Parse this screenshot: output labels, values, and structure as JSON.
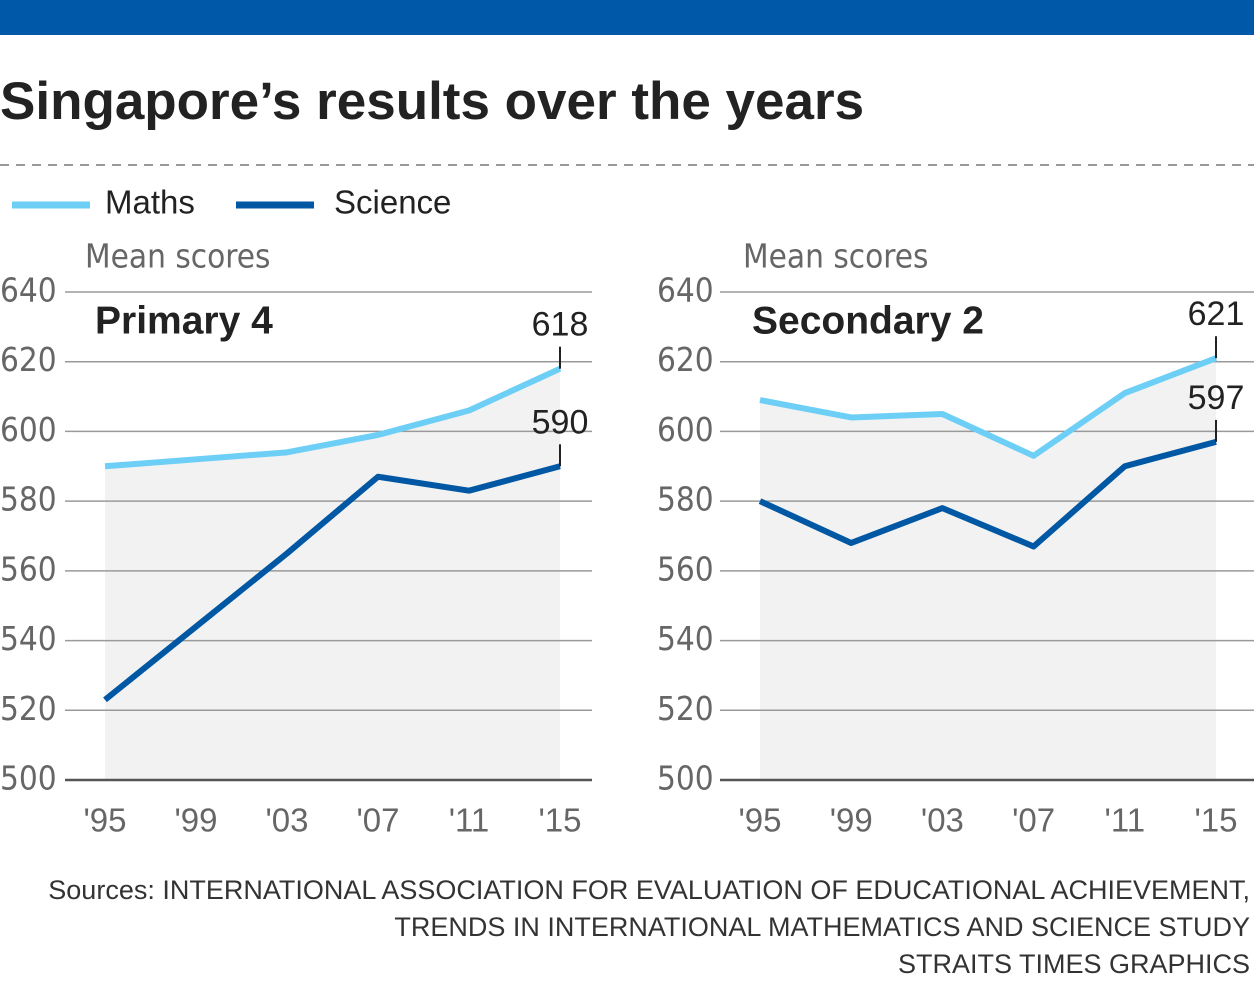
{
  "title": "Singapore’s results over the years",
  "sources": [
    "Sources: INTERNATIONAL ASSOCIATION FOR EVALUATION OF EDUCATIONAL ACHIEVEMENT,",
    "TRENDS IN INTERNATIONAL MATHEMATICS AND SCIENCE STUDY",
    "STRAITS TIMES GRAPHICS"
  ],
  "chart_data": [
    {
      "type": "line",
      "subtitle": "Primary 4",
      "ylabel": "Mean scores",
      "categories": [
        "'95",
        "'99",
        "'03",
        "'07",
        "'11",
        "'15"
      ],
      "series": [
        {
          "name": "Maths",
          "color": "#6dcff6",
          "values": [
            590,
            592,
            594,
            599,
            606,
            618
          ]
        },
        {
          "name": "Science",
          "color": "#0057a3",
          "values": [
            523,
            544,
            565,
            587,
            583,
            590
          ]
        }
      ],
      "ylim": [
        500,
        640
      ],
      "yticks": [
        500,
        520,
        540,
        560,
        580,
        600,
        620,
        640
      ],
      "grid": true
    },
    {
      "type": "line",
      "subtitle": "Secondary 2",
      "ylabel": "Mean scores",
      "categories": [
        "'95",
        "'99",
        "'03",
        "'07",
        "'11",
        "'15"
      ],
      "series": [
        {
          "color": "#6dcff6",
          "values": [
            609,
            604,
            605,
            593,
            611,
            621
          ]
        },
        {
          "color": "#0057a3",
          "values": [
            580,
            568,
            578,
            567,
            590,
            597
          ]
        }
      ],
      "ylim": [
        500,
        640
      ],
      "yticks": [
        500,
        520,
        540,
        560,
        580,
        600,
        620,
        640
      ],
      "grid": true
    }
  ]
}
